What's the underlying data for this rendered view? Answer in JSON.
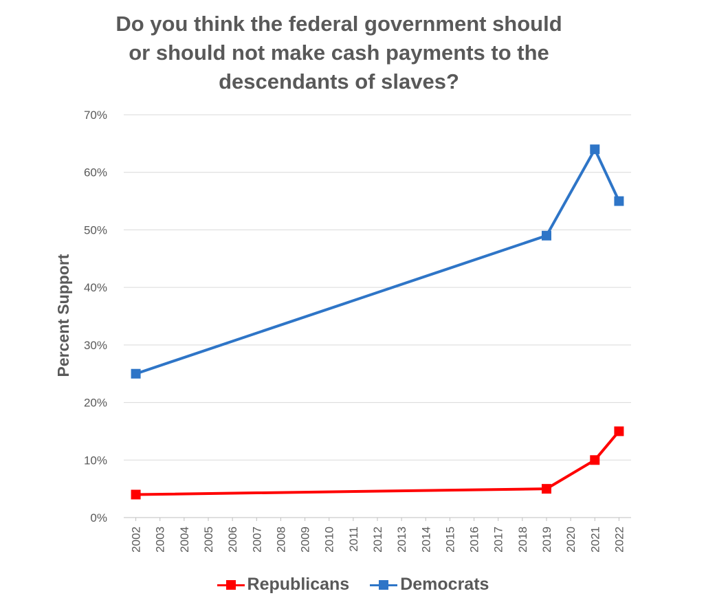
{
  "chart_data": {
    "type": "line",
    "title_lines": [
      "Do you think the federal government should",
      "or should not make cash payments to the",
      "descendants of slaves?"
    ],
    "ylabel": "Percent Support",
    "xlabel": "",
    "ylim": [
      0,
      70
    ],
    "y_ticks": [
      "0%",
      "10%",
      "20%",
      "30%",
      "40%",
      "50%",
      "60%",
      "70%"
    ],
    "categories": [
      "2002",
      "2003",
      "2004",
      "2005",
      "2006",
      "2007",
      "2008",
      "2009",
      "2010",
      "2011",
      "2012",
      "2013",
      "2014",
      "2015",
      "2016",
      "2017",
      "2018",
      "2019",
      "2020",
      "2021",
      "2022"
    ],
    "series": [
      {
        "name": "Republicans",
        "color": "#ff0000",
        "points": [
          {
            "x": "2002",
            "y": 4
          },
          {
            "x": "2019",
            "y": 5
          },
          {
            "x": "2021",
            "y": 10
          },
          {
            "x": "2022",
            "y": 15
          }
        ]
      },
      {
        "name": "Democrats",
        "color": "#2e75c7",
        "points": [
          {
            "x": "2002",
            "y": 25
          },
          {
            "x": "2019",
            "y": 49
          },
          {
            "x": "2021",
            "y": 64
          },
          {
            "x": "2022",
            "y": 55
          }
        ]
      }
    ],
    "grid": true,
    "legend": "bottom"
  }
}
